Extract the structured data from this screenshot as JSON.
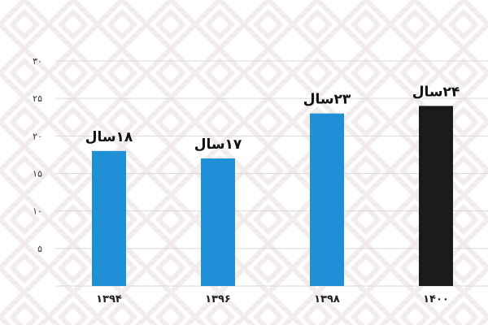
{
  "chart_data": {
    "type": "bar",
    "categories": [
      "۱۳۹۴",
      "۱۳۹۶",
      "۱۳۹۸",
      "۱۴۰۰"
    ],
    "values": [
      18,
      17,
      23,
      24
    ],
    "data_labels": [
      "۱۸سال",
      "۱۷سال",
      "۲۳سال",
      "۲۴سال"
    ],
    "ylim": [
      0,
      30
    ],
    "yticks": [
      5,
      10,
      15,
      20,
      25,
      30
    ],
    "ytick_labels": [
      "۵",
      "۱۰",
      "۱۵",
      "۲۰",
      "۲۵",
      "۳۰"
    ],
    "grid": true,
    "bar_colors": [
      "#1f8fd6",
      "#1f8fd6",
      "#1f8fd6",
      "#1a1a1a"
    ],
    "grid_color": "#d9d9d9",
    "background_pattern_color": "#f3ecec"
  }
}
